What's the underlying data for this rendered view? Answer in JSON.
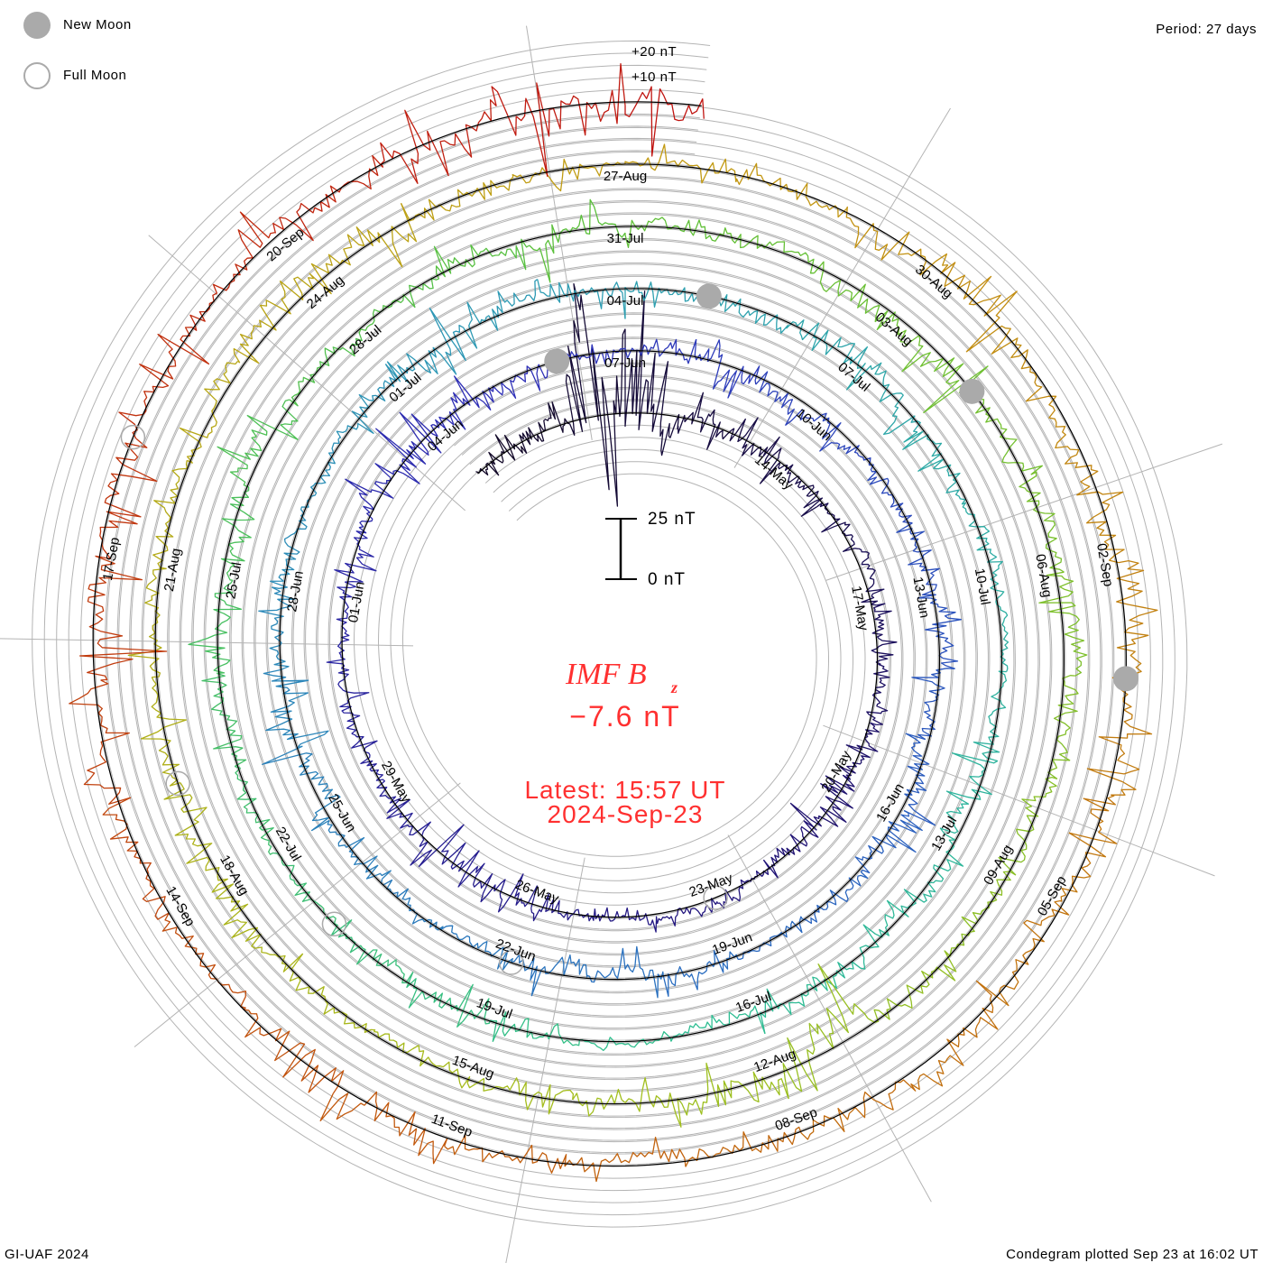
{
  "chart_data": {
    "type": "line",
    "form": "polar-spiral-condegram",
    "title": "IMF B",
    "title_subscript": "z",
    "latest_value": "−7.6 nT",
    "latest_label": "Latest: 15:57 UT",
    "latest_date": "2024-Sep-23",
    "period_label": "Period: 27 days",
    "period_days": 27,
    "rotation_start": "2024-05-11",
    "data_start_day": -3,
    "data_end_day": 135.66,
    "offset_labels": [
      "+20 nT",
      "+10 nT"
    ],
    "scale_bar": {
      "top_label": "25 nT",
      "bottom_label": "0 nT",
      "value_nT": 25
    },
    "legend": {
      "new_moon": "New Moon",
      "full_moon": "Full Moon"
    },
    "date_labels": [
      "14-May",
      "17-May",
      "20-May",
      "23-May",
      "26-May",
      "29-May",
      "01-Jun",
      "04-Jun",
      "07-Jun",
      "10-Jun",
      "13-Jun",
      "16-Jun",
      "19-Jun",
      "22-Jun",
      "25-Jun",
      "28-Jun",
      "01-Jul",
      "04-Jul",
      "07-Jul",
      "10-Jul",
      "13-Jul",
      "16-Jul",
      "19-Jul",
      "22-Jul",
      "25-Jul",
      "28-Jul",
      "31-Jul",
      "03-Aug",
      "06-Aug",
      "09-Aug",
      "12-Aug",
      "15-Aug",
      "18-Aug",
      "21-Aug",
      "24-Aug",
      "27-Aug",
      "30-Aug",
      "02-Sep",
      "05-Sep",
      "08-Sep",
      "11-Sep",
      "14-Sep",
      "17-Sep",
      "20-Sep"
    ],
    "date_label_interval_days": 3,
    "new_moon_days": [
      26,
      55,
      85,
      115
    ],
    "full_moon_days": [
      12,
      42,
      71,
      100,
      130
    ],
    "daily_bz_amplitude_nT": [
      4,
      5,
      30,
      25,
      6,
      5,
      4,
      3,
      4,
      5,
      3,
      4,
      6,
      5,
      4,
      3,
      3,
      4,
      6,
      8,
      5,
      4,
      3,
      3,
      4,
      5,
      9,
      6,
      4,
      3,
      4,
      8,
      5,
      4,
      3,
      4,
      5,
      4,
      6,
      5,
      4,
      3,
      4,
      5,
      6,
      4,
      3,
      5,
      9,
      10,
      5,
      4,
      3,
      4,
      6,
      5,
      4,
      3,
      4,
      5,
      6,
      5,
      4,
      3,
      4,
      5,
      4,
      6,
      5,
      4,
      3,
      4,
      5,
      4,
      3,
      4,
      5,
      6,
      4,
      5,
      4,
      3,
      5,
      6,
      4,
      5,
      6,
      8,
      5,
      4,
      6,
      5,
      4,
      3,
      5,
      12,
      10,
      6,
      5,
      4,
      4,
      5,
      6,
      5,
      4,
      3,
      5,
      8,
      6,
      5,
      4,
      3,
      4,
      5,
      6,
      5,
      8,
      10,
      6,
      5,
      4,
      6,
      5,
      4,
      5,
      6,
      8,
      6,
      4,
      5,
      6,
      9,
      7,
      5,
      4,
      6,
      8,
      9,
      10
    ],
    "color_stops": [
      "#120828",
      "#22157a",
      "#2f2fb8",
      "#2a6cc0",
      "#2e9cb4",
      "#2fbf92",
      "#5cc03a",
      "#a2bf1e",
      "#c29a12",
      "#c2600e",
      "#c01010"
    ],
    "colors": {
      "grid": "#b4b4b4",
      "moon": "#aaaaaa",
      "text_accent": "#ff3030"
    }
  },
  "footer": {
    "left": "GI-UAF 2024",
    "right": "Condegram plotted Sep 23 at 16:02 UT"
  }
}
